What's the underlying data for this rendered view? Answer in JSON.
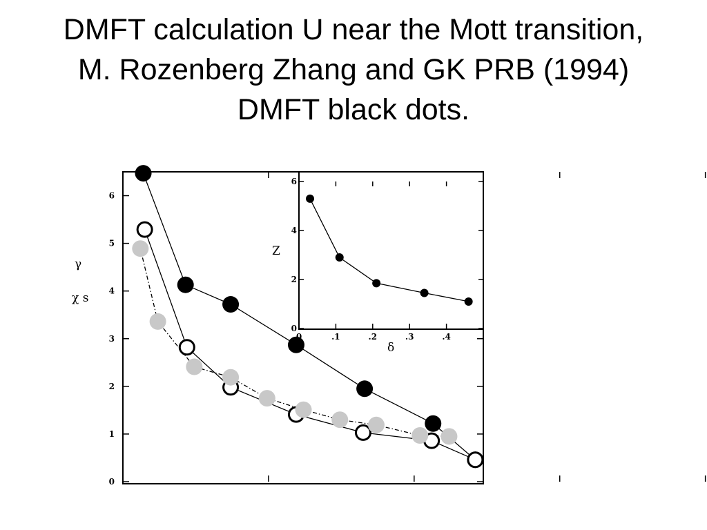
{
  "slide": {
    "title_lines": [
      "DMFT calculation U near the Mott transition,",
      "M. Rozenberg Zhang and GK  PRB (1994)",
      "DMFT black dots."
    ]
  },
  "chart_data": [
    {
      "type": "scatter",
      "xlabel": "",
      "ylabel_lines": [
        "γ",
        "χ s"
      ],
      "xlim": [
        0,
        0.5
      ],
      "ylim": [
        0,
        6.5
      ],
      "yticks": [
        0,
        1,
        2,
        3,
        4,
        5,
        6
      ],
      "ytick_labels": [
        "0",
        "1",
        "2",
        "3",
        "4",
        "5",
        "6"
      ],
      "xticks": [
        0,
        0.1,
        0.2,
        0.3,
        0.4
      ],
      "series": [
        {
          "marker": "filled-black",
          "line": "solid",
          "color": "#000000",
          "x": [
            0.014,
            0.043,
            0.074,
            0.119,
            0.166,
            0.213,
            0.242
          ],
          "y": [
            6.47,
            4.13,
            3.72,
            2.87,
            1.95,
            1.22,
            0.46
          ]
        },
        {
          "marker": "open-circle",
          "line": "solid",
          "color": "#000000",
          "x": [
            0.015,
            0.044,
            0.074,
            0.119,
            0.165,
            0.212,
            0.242
          ],
          "y": [
            5.29,
            2.82,
            1.98,
            1.41,
            1.03,
            0.86,
            0.46
          ]
        },
        {
          "marker": "filled-gray",
          "line": "dash-dot",
          "color": "#c8c8c8",
          "x": [
            0.012,
            0.024,
            0.049,
            0.074,
            0.099,
            0.124,
            0.149,
            0.174,
            0.204,
            0.224
          ],
          "y": [
            4.89,
            3.36,
            2.41,
            2.19,
            1.75,
            1.51,
            1.3,
            1.19,
            0.97,
            0.95
          ]
        }
      ]
    },
    {
      "type": "line",
      "ylabel": "Z",
      "xlabel": "δ",
      "xlim": [
        0,
        0.5
      ],
      "ylim": [
        0,
        6
      ],
      "xticks": [
        0,
        0.1,
        0.2,
        0.3,
        0.4
      ],
      "xtick_labels": [
        "0",
        ".1",
        ".2",
        ".3",
        ".4"
      ],
      "yticks": [
        0,
        2,
        4,
        6
      ],
      "ytick_labels": [
        "0",
        "2",
        "4",
        "6"
      ],
      "series": [
        {
          "marker": "filled-black",
          "line": "solid",
          "color": "#000000",
          "x": [
            0.03,
            0.11,
            0.21,
            0.34,
            0.46
          ],
          "y": [
            5.3,
            2.9,
            1.85,
            1.45,
            1.1
          ]
        }
      ]
    }
  ]
}
